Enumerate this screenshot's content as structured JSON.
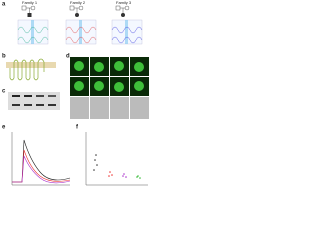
{
  "panels": [
    {
      "label": "a",
      "families": [
        "Family 1",
        "Family 2",
        "Family 3"
      ]
    },
    {
      "label": "b"
    },
    {
      "label": "c"
    },
    {
      "label": "d"
    },
    {
      "label": "e"
    },
    {
      "label": "f"
    }
  ]
}
